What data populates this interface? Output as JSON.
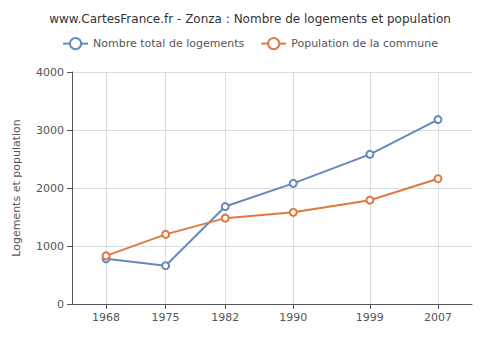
{
  "chart_data": {
    "type": "line",
    "title": "www.CartesFrance.fr - Zonza : Nombre de logements et population",
    "ylabel": "Logements et population",
    "x": [
      1968,
      1975,
      1982,
      1990,
      1999,
      2007
    ],
    "series": [
      {
        "name": "Nombre total de logements",
        "color": "#6688bb",
        "marker": "circle",
        "values": [
          780,
          660,
          1680,
          2080,
          2580,
          3180
        ]
      },
      {
        "name": "Population de la commune",
        "color": "#e07840",
        "marker": "circle",
        "values": [
          830,
          1200,
          1480,
          1580,
          1790,
          2160
        ]
      }
    ],
    "xlim": [
      1964,
      2011
    ],
    "xticks": [
      1968,
      1975,
      1982,
      1990,
      1999,
      2007
    ],
    "ylim": [
      0,
      4000
    ],
    "yticks": [
      0,
      1000,
      2000,
      3000,
      4000
    ],
    "grid": true,
    "legend": "top"
  }
}
